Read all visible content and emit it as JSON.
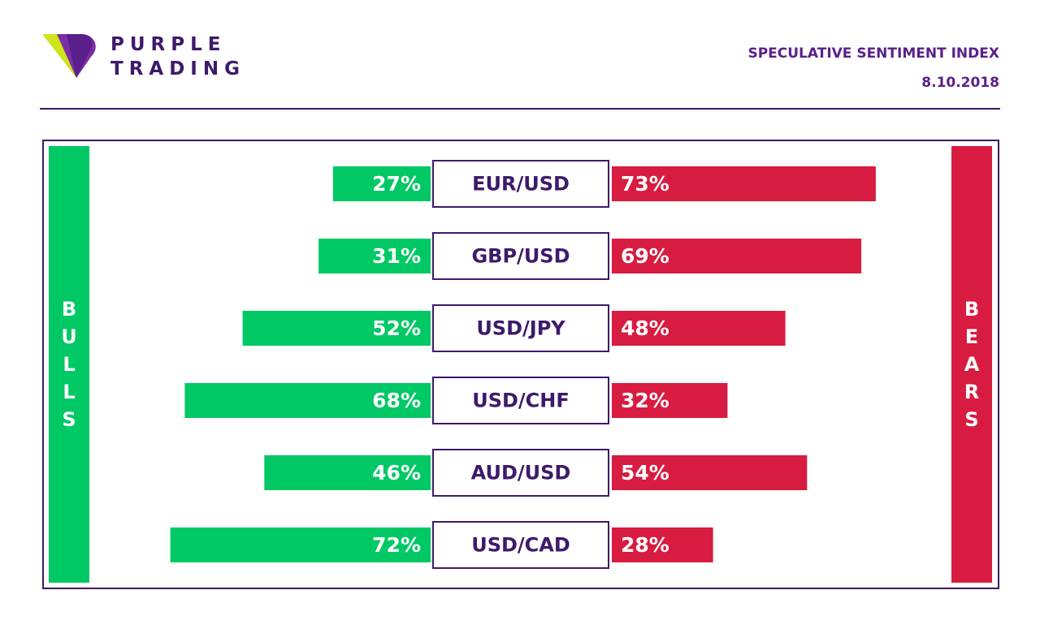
{
  "brand": {
    "line1": "PURPLE",
    "line2": "TRADING"
  },
  "header": {
    "title": "SPECULATIVE SENTIMENT INDEX",
    "date": "8.10.2018"
  },
  "side_labels": {
    "left": "BULLS",
    "right": "BEARS"
  },
  "colors": {
    "bulls": "#00c865",
    "bears": "#d81b40",
    "frame": "#3d1a6b",
    "brand": "#3d1a6b"
  },
  "chart_data": {
    "type": "bar",
    "orientation": "horizontal-diverging",
    "categories": [
      "EUR/USD",
      "GBP/USD",
      "USD/JPY",
      "USD/CHF",
      "AUD/USD",
      "USD/CAD"
    ],
    "series": [
      {
        "name": "BULLS",
        "values": [
          27,
          31,
          52,
          68,
          46,
          72
        ]
      },
      {
        "name": "BEARS",
        "values": [
          73,
          69,
          48,
          32,
          54,
          28
        ]
      }
    ],
    "value_suffix": "%",
    "title": "SPECULATIVE SENTIMENT INDEX",
    "xlabel": "",
    "ylabel": ""
  }
}
